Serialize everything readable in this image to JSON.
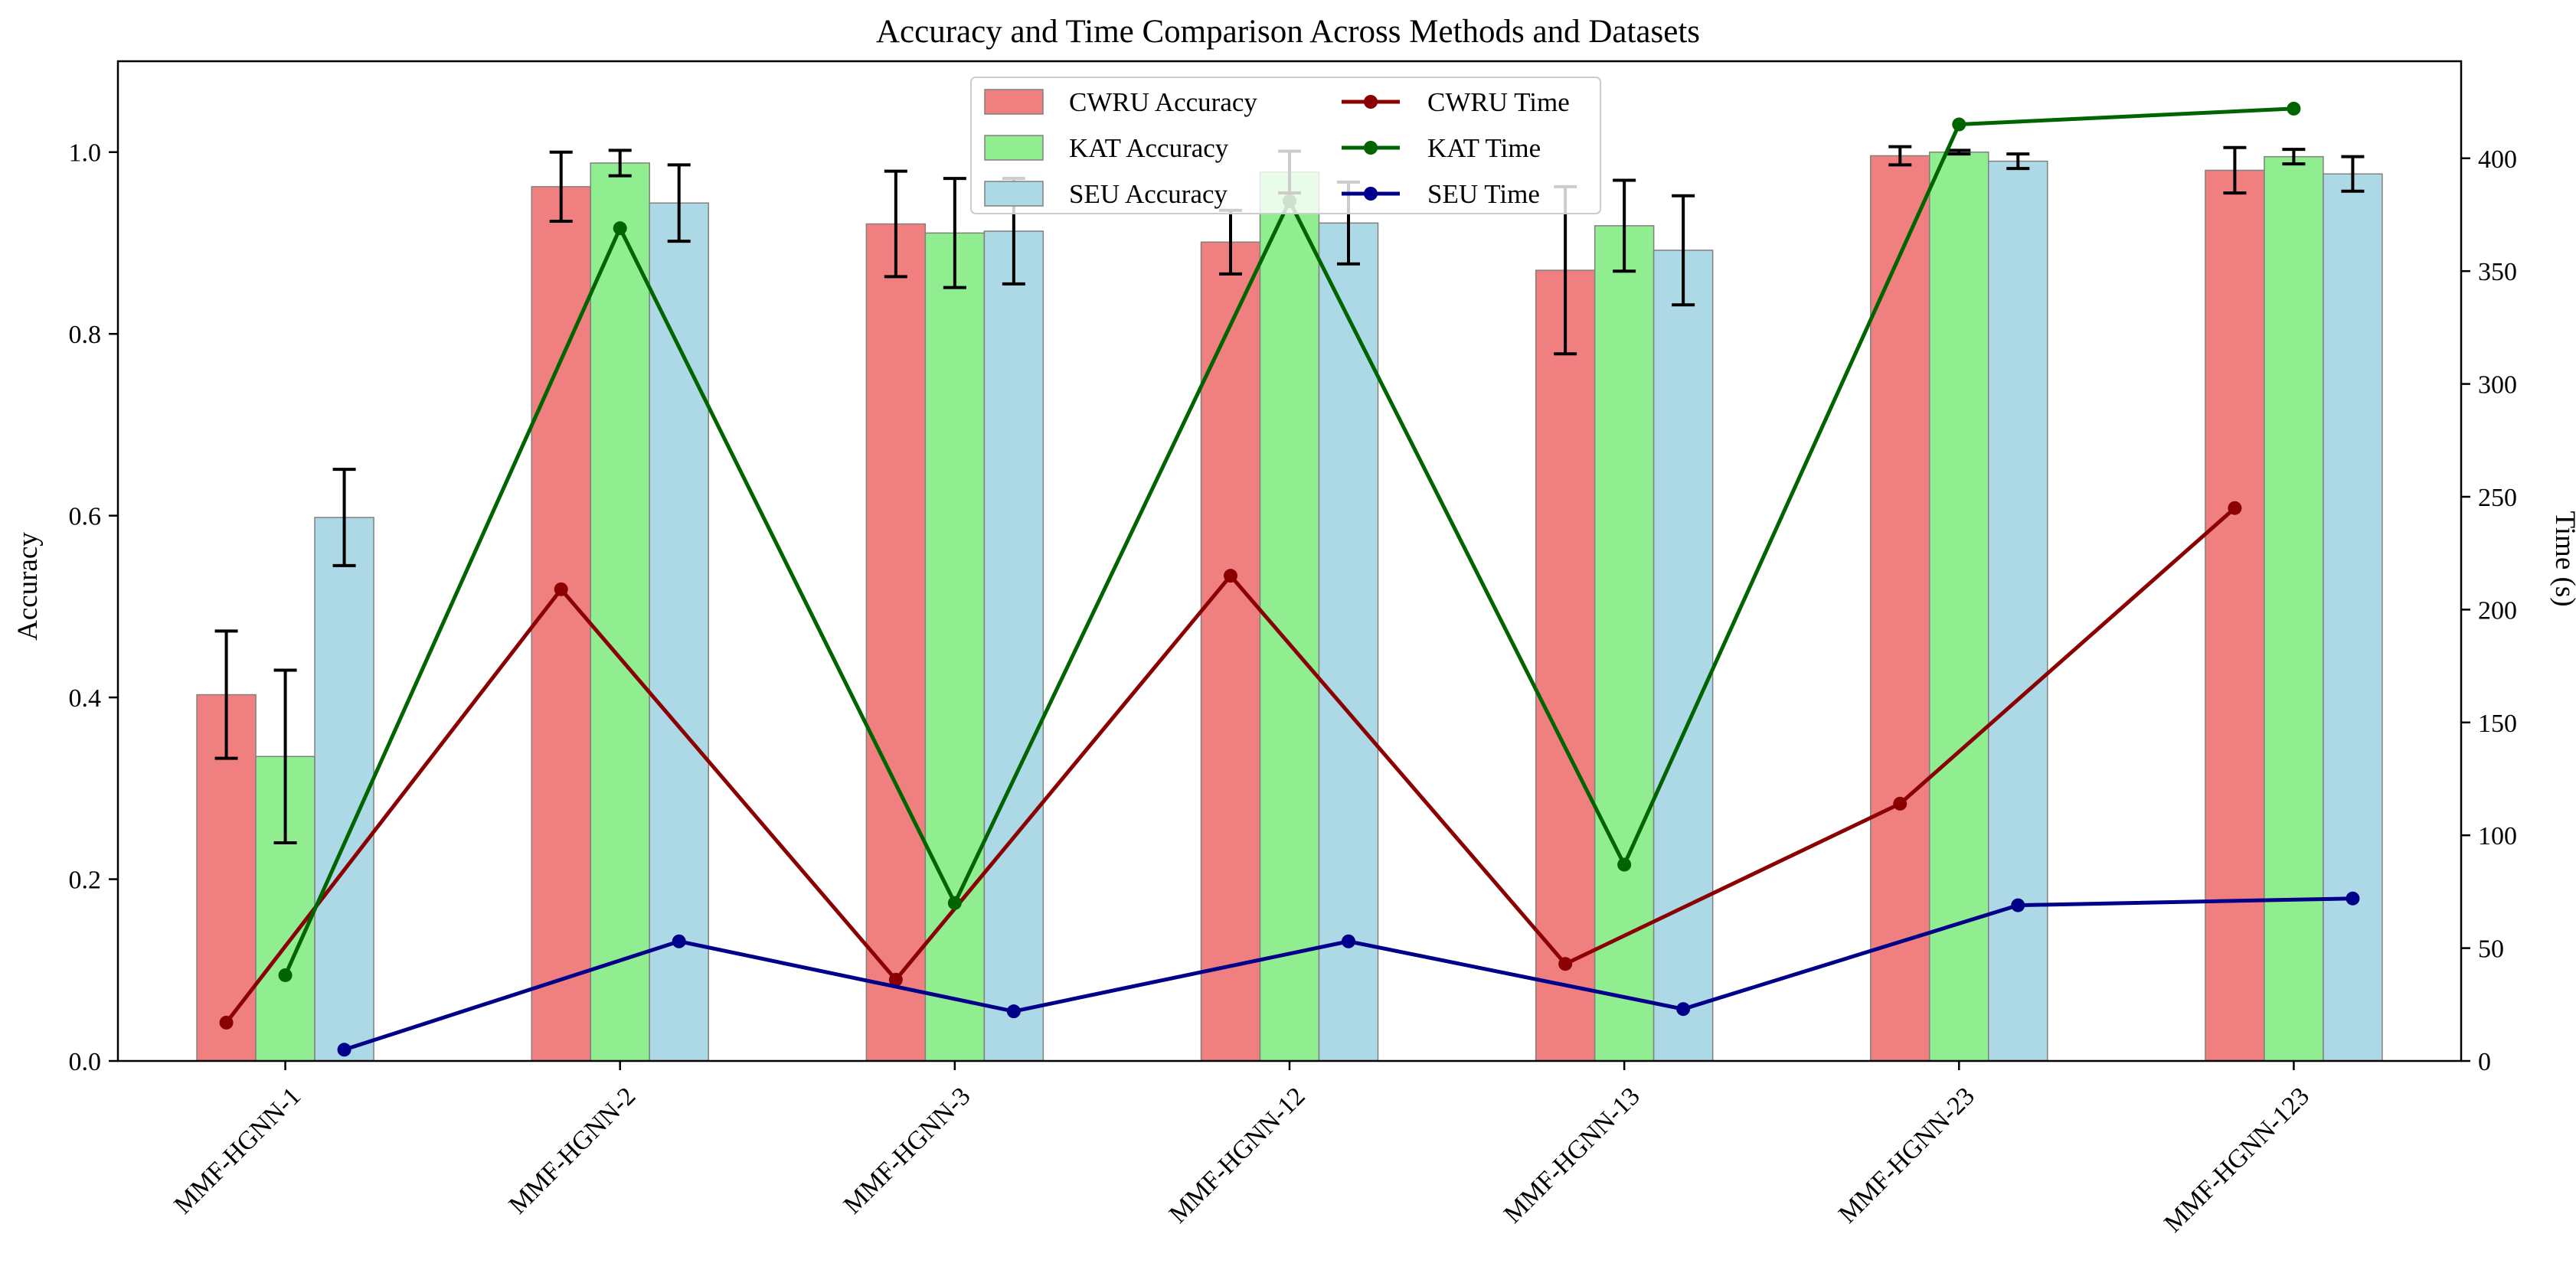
{
  "chart_data": {
    "type": "bar",
    "title": "Accuracy and Time Comparison Across Methods and Datasets",
    "xlabel": "",
    "ylabel": "Accuracy",
    "y2label": "Time (s)",
    "ylim": [
      0,
      1.1
    ],
    "y2lim": [
      0,
      443
    ],
    "yticks": [
      "0.0",
      "0.2",
      "0.4",
      "0.6",
      "0.8",
      "1.0"
    ],
    "y2ticks": [
      "0",
      "50",
      "100",
      "150",
      "200",
      "250",
      "300",
      "350",
      "400"
    ],
    "categories": [
      "MMF-HGNN-1",
      "MMF-HGNN-2",
      "MMF-HGNN-3",
      "MMF-HGNN-12",
      "MMF-HGNN-13",
      "MMF-HGNN-23",
      "MMF-HGNN-123"
    ],
    "series": [
      {
        "name": "CWRU Accuracy",
        "color": "#f08080",
        "values": [
          0.403,
          0.962,
          0.921,
          0.901,
          0.87,
          0.996,
          0.98
        ],
        "errors": [
          0.07,
          0.038,
          0.058,
          0.035,
          0.092,
          0.01,
          0.025
        ]
      },
      {
        "name": "KAT Accuracy",
        "color": "#90ee90",
        "values": [
          0.335,
          0.988,
          0.911,
          0.978,
          0.919,
          1.0,
          0.995
        ],
        "errors": [
          0.095,
          0.014,
          0.06,
          0.023,
          0.05,
          0.002,
          0.008
        ]
      },
      {
        "name": "SEU Accuracy",
        "color": "#add8e6",
        "values": [
          0.598,
          0.944,
          0.913,
          0.922,
          0.892,
          0.99,
          0.976
        ],
        "errors": [
          0.053,
          0.042,
          0.058,
          0.045,
          0.06,
          0.008,
          0.019
        ]
      }
    ],
    "lines": [
      {
        "name": "CWRU Time",
        "color": "#8b0000",
        "values": [
          17,
          209,
          36,
          215,
          43,
          114,
          245
        ]
      },
      {
        "name": "KAT Time",
        "color": "#006400",
        "values": [
          38,
          369,
          70,
          381,
          87,
          415,
          422
        ]
      },
      {
        "name": "SEU Time",
        "color": "#00008b",
        "values": [
          5,
          53,
          22,
          53,
          23,
          69,
          72
        ]
      }
    ],
    "legend": {
      "location": "top-center",
      "columns": 2
    }
  }
}
